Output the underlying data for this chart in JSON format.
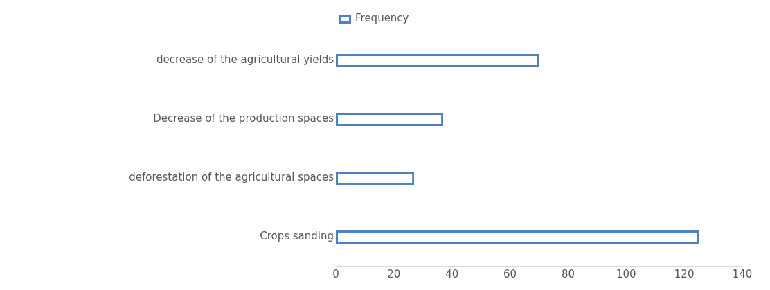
{
  "chart_data": {
    "type": "bar",
    "orientation": "horizontal",
    "categories": [
      "decrease of the agricultural yields",
      "Decrease of the production spaces",
      "deforestation of the agricultural spaces",
      "Crops sanding"
    ],
    "series": [
      {
        "name": "Frequency",
        "color": "#4f81bd",
        "values": [
          70,
          37,
          27,
          125
        ]
      }
    ],
    "xlim": [
      0,
      140
    ],
    "xticks": [
      0,
      20,
      40,
      60,
      80,
      100,
      120,
      140
    ],
    "grid": false,
    "legend": "top"
  }
}
